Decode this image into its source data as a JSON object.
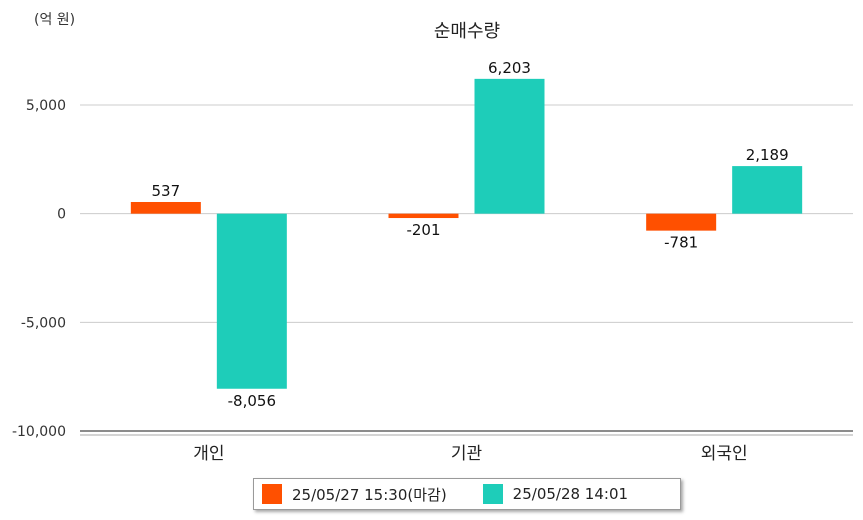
{
  "unit_label": "(억 원)",
  "chart_data": {
    "type": "bar",
    "title": "순매수량",
    "categories": [
      "개인",
      "기관",
      "외국인"
    ],
    "series": [
      {
        "name": "25/05/27 15:30(마감)",
        "values": [
          537,
          -201,
          -781
        ],
        "labels": [
          "537",
          "-201",
          "-781"
        ],
        "color": "#ff5000"
      },
      {
        "name": "25/05/28 14:01",
        "values": [
          -8056,
          6203,
          2189
        ],
        "labels": [
          "-8,056",
          "6,203",
          "2,189"
        ],
        "color": "#1ecdb9"
      }
    ],
    "ylim": [
      -10000,
      7500
    ],
    "yticks": [
      5000,
      0,
      -5000,
      -10000
    ],
    "ytick_labels": [
      "5,000",
      "0",
      "-5,000",
      "-10,000"
    ],
    "grid": true,
    "legend_position": "bottom"
  }
}
